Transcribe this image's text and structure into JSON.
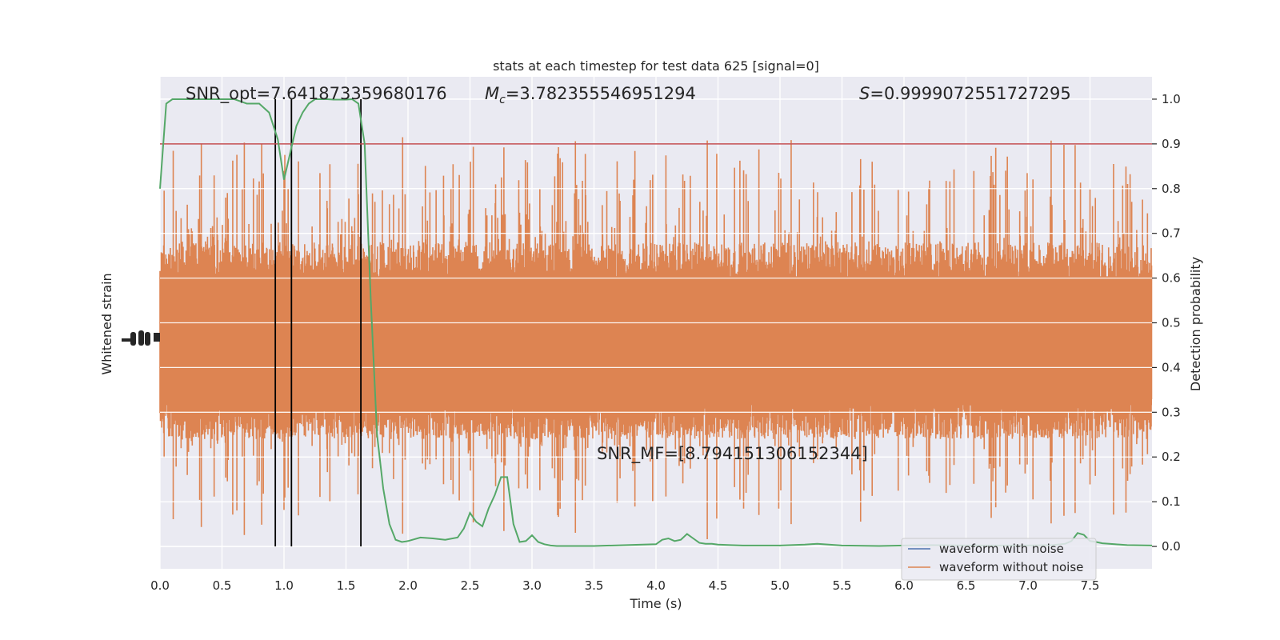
{
  "chart_data": {
    "type": "line",
    "title": "stats at each timestep for test data 625 [signal=0]",
    "xlabel": "Time (s)",
    "ylabel_left": "Whitened strain",
    "ylabel_right": "Detection probability",
    "xlim": [
      0.0,
      8.0
    ],
    "ylim_right": [
      -0.05,
      1.05
    ],
    "xticks": [
      0.0,
      0.5,
      1.0,
      1.5,
      2.0,
      2.5,
      3.0,
      3.5,
      4.0,
      4.5,
      5.0,
      5.5,
      6.0,
      6.5,
      7.0,
      7.5
    ],
    "xtick_labels": [
      "0.0",
      "0.5",
      "1.0",
      "1.5",
      "2.0",
      "2.5",
      "3.0",
      "3.5",
      "4.0",
      "4.5",
      "5.0",
      "5.5",
      "6.0",
      "6.5",
      "7.0",
      "7.5"
    ],
    "yticks_right": [
      0.0,
      0.1,
      0.2,
      0.3,
      0.4,
      0.5,
      0.6,
      0.7,
      0.8,
      0.9,
      1.0
    ],
    "ytick_labels_right": [
      "0.0",
      "0.1",
      "0.2",
      "0.3",
      "0.4",
      "0.5",
      "0.6",
      "0.7",
      "0.8",
      "0.9",
      "1.0"
    ],
    "grid": true,
    "legend_position": "bottom-right",
    "annotations": {
      "snr_opt": "SNR_opt=7.641873359680176",
      "mc_symbol": "M",
      "mc_sub": "c",
      "mc_value": "=3.782355546951294",
      "s_symbol": "S",
      "s_value": "=0.9999072551727295",
      "snr_mf": "SNR_MF=[8.794151306152344]"
    },
    "threshold": 0.9,
    "vertical_lines_x": [
      0.93,
      1.06,
      1.62
    ],
    "series": [
      {
        "name": "waveform with noise",
        "color": "#4c72b0",
        "role": "legend-only"
      },
      {
        "name": "waveform without noise",
        "color": "#dd8452",
        "role": "strain",
        "center": 0.46,
        "core_halfwidth": 0.2,
        "max_excursion": 0.45,
        "samples": 2400
      },
      {
        "color": "#55a868",
        "role": "probability",
        "x": [
          0.0,
          0.05,
          0.1,
          0.2,
          0.3,
          0.4,
          0.5,
          0.6,
          0.7,
          0.8,
          0.88,
          0.95,
          1.0,
          1.05,
          1.1,
          1.15,
          1.2,
          1.25,
          1.3,
          1.35,
          1.4,
          1.45,
          1.5,
          1.55,
          1.6,
          1.65,
          1.7,
          1.75,
          1.8,
          1.85,
          1.9,
          1.95,
          2.0,
          2.1,
          2.2,
          2.3,
          2.4,
          2.45,
          2.5,
          2.55,
          2.6,
          2.65,
          2.7,
          2.75,
          2.8,
          2.85,
          2.9,
          2.95,
          3.0,
          3.05,
          3.1,
          3.15,
          3.2,
          3.3,
          3.5,
          4.0,
          4.05,
          4.1,
          4.15,
          4.2,
          4.25,
          4.3,
          4.35,
          4.4,
          4.45,
          4.5,
          4.6,
          4.7,
          5.0,
          5.2,
          5.3,
          5.5,
          5.8,
          6.0,
          6.2,
          6.5,
          6.8,
          7.0,
          7.2,
          7.3,
          7.35,
          7.4,
          7.45,
          7.5,
          7.55,
          7.6,
          7.7,
          7.8,
          8.0
        ],
        "y": [
          0.8,
          0.99,
          1.0,
          1.0,
          1.0,
          1.0,
          1.0,
          1.0,
          0.99,
          0.99,
          0.97,
          0.91,
          0.82,
          0.88,
          0.94,
          0.97,
          0.99,
          1.0,
          1.0,
          1.0,
          0.999,
          0.999,
          0.999,
          1.0,
          0.99,
          0.9,
          0.55,
          0.25,
          0.13,
          0.05,
          0.015,
          0.01,
          0.012,
          0.02,
          0.018,
          0.015,
          0.02,
          0.04,
          0.075,
          0.055,
          0.045,
          0.085,
          0.115,
          0.155,
          0.155,
          0.05,
          0.01,
          0.012,
          0.025,
          0.01,
          0.005,
          0.002,
          0.001,
          0.001,
          0.001,
          0.005,
          0.015,
          0.018,
          0.012,
          0.015,
          0.028,
          0.018,
          0.008,
          0.006,
          0.006,
          0.004,
          0.003,
          0.002,
          0.002,
          0.004,
          0.006,
          0.002,
          0.001,
          0.002,
          0.003,
          0.002,
          0.002,
          0.002,
          0.003,
          0.006,
          0.012,
          0.03,
          0.026,
          0.012,
          0.01,
          0.007,
          0.005,
          0.003,
          0.002
        ]
      }
    ]
  }
}
